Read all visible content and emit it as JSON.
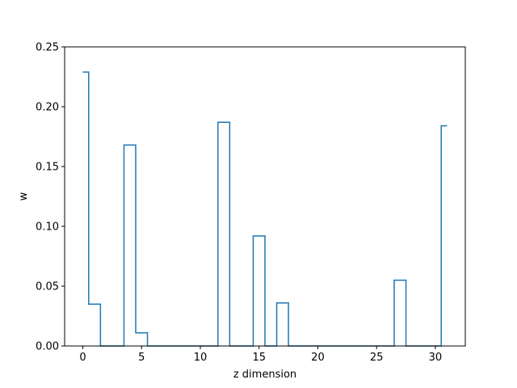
{
  "chart_data": {
    "type": "line",
    "drawstyle": "steps-mid",
    "title": "",
    "xlabel": "z dimension",
    "ylabel": "w",
    "xlim": [
      -1.55,
      32.55
    ],
    "ylim": [
      0,
      0.25
    ],
    "xticks": [
      0,
      5,
      10,
      15,
      20,
      25,
      30
    ],
    "xtick_labels": [
      "0",
      "5",
      "10",
      "15",
      "20",
      "25",
      "30"
    ],
    "yticks": [
      0,
      0.05,
      0.1,
      0.15,
      0.2,
      0.25
    ],
    "ytick_labels": [
      "0.00",
      "0.05",
      "0.10",
      "0.15",
      "0.20",
      "0.25"
    ],
    "grid": false,
    "line_color": "#1f77b4",
    "series": [
      {
        "x": [
          0,
          1,
          2,
          3,
          4,
          5,
          6,
          7,
          8,
          9,
          10,
          11,
          12,
          13,
          14,
          15,
          16,
          17,
          18,
          19,
          20,
          21,
          22,
          23,
          24,
          25,
          26,
          27,
          28,
          29,
          30,
          31
        ],
        "values": [
          0.229,
          0.035,
          0,
          0,
          0.168,
          0.011,
          0,
          0,
          0,
          0,
          0,
          0,
          0.187,
          0,
          0,
          0.092,
          0,
          0.036,
          0,
          0,
          0,
          0,
          0,
          0,
          0,
          0,
          0,
          0.055,
          0,
          0,
          0,
          0.184
        ]
      }
    ]
  }
}
